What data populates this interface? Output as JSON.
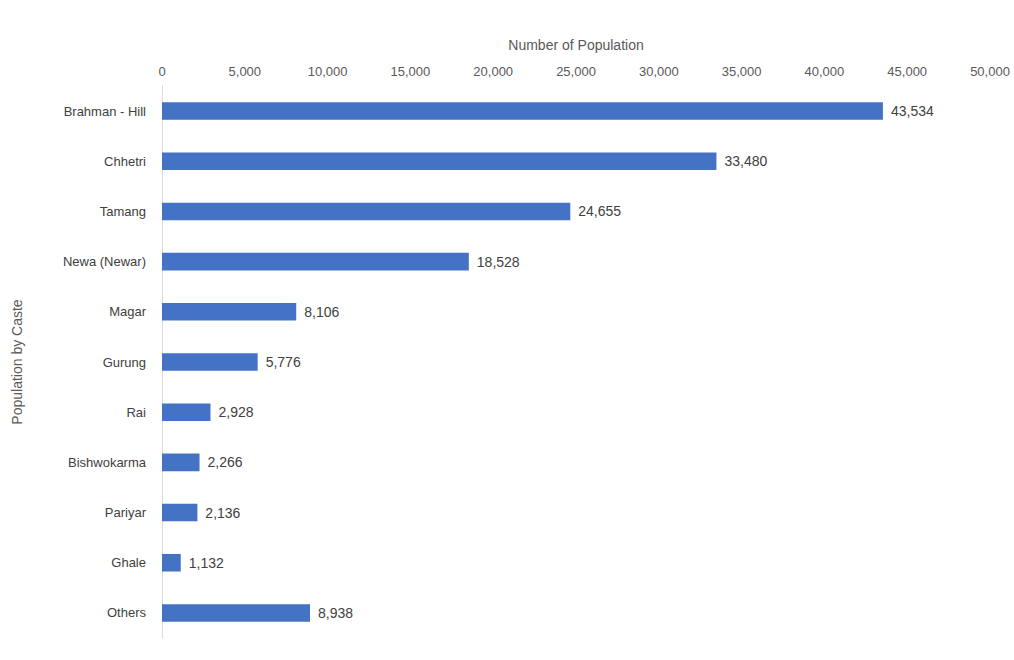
{
  "chart_data": {
    "type": "bar",
    "orientation": "horizontal",
    "x_label": "Number of Population",
    "y_label": "Population by Caste",
    "categories": [
      "Brahman - Hill",
      "Chhetri",
      "Tamang",
      "Newa (Newar)",
      "Magar",
      "Gurung",
      "Rai",
      "Bishwokarma",
      "Pariyar",
      "Ghale",
      "Others"
    ],
    "values": [
      43534,
      33480,
      24655,
      18528,
      8106,
      5776,
      2928,
      2266,
      2136,
      1132,
      8938
    ],
    "value_labels": [
      "43,534",
      "33,480",
      "24,655",
      "18,528",
      "8,106",
      "5,776",
      "2,928",
      "2,266",
      "2,136",
      "1,132",
      "8,938"
    ],
    "color": "#4472c4",
    "xlim": [
      0,
      50000
    ],
    "xticks": [
      0,
      {
        "value": 5000,
        "label": "5,000"
      },
      {
        "value": 10000,
        "label": "10,000"
      },
      {
        "value": 15000,
        "label": "15,000"
      },
      {
        "value": 20000,
        "label": "20,000"
      },
      {
        "value": 25000,
        "label": "25,000"
      },
      {
        "value": 30000,
        "label": "30,000"
      },
      {
        "value": 35000,
        "label": "35,000"
      },
      {
        "value": 40000,
        "label": "40,000"
      },
      {
        "value": 45000,
        "label": "45,000"
      },
      {
        "value": 50000,
        "label": "50,000"
      }
    ],
    "grid": false,
    "data_labels": true
  }
}
